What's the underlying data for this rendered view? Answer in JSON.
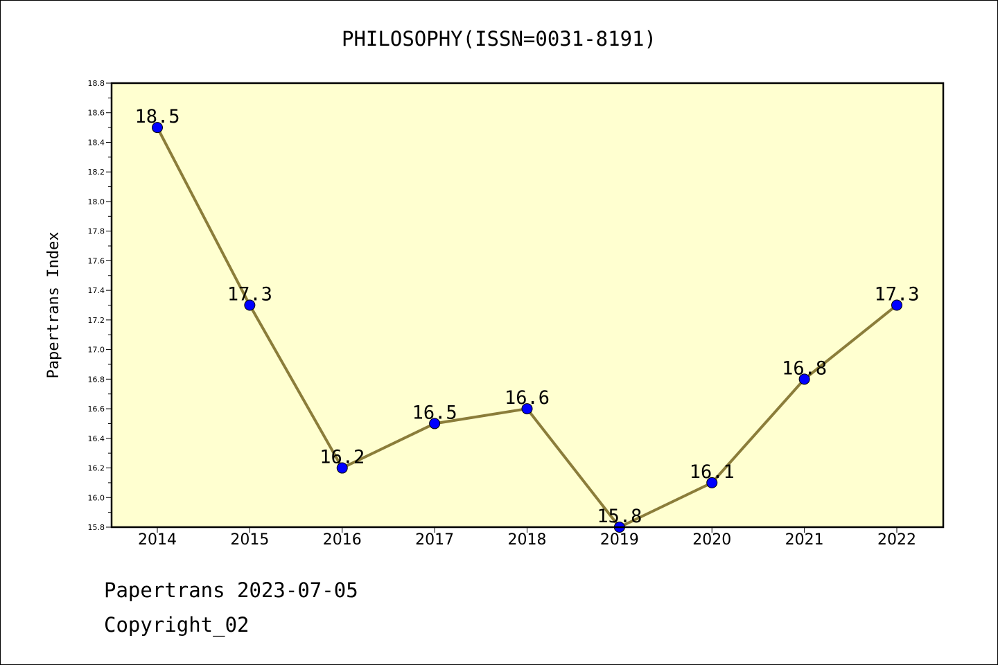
{
  "footer": {
    "line1": "Papertrans 2023-07-05",
    "line2": "Copyright_02"
  },
  "colors": {
    "plot_background": "#FFFFD0",
    "line": "#8B7D3A",
    "marker": "#0000FF"
  },
  "chart_data": {
    "type": "line",
    "title": "PHILOSOPHY(ISSN=0031-8191)",
    "xlabel": "",
    "ylabel": "Papertrans Index",
    "categories": [
      "2014",
      "2015",
      "2016",
      "2017",
      "2018",
      "2019",
      "2020",
      "2021",
      "2022"
    ],
    "values": [
      18.5,
      17.3,
      16.2,
      16.5,
      16.6,
      15.8,
      16.1,
      16.8,
      17.3
    ],
    "data_labels": [
      "18.5",
      "17.3",
      "16.2",
      "16.5",
      "16.6",
      "15.8",
      "16.1",
      "16.8",
      "17.3"
    ],
    "ylim": [
      15.8,
      18.8
    ],
    "yticks": [
      "15.8",
      "16.0",
      "16.2",
      "16.4",
      "16.6",
      "16.8",
      "17.0",
      "17.2",
      "17.4",
      "17.6",
      "17.8",
      "18.0",
      "18.2",
      "18.4",
      "18.6",
      "18.8"
    ],
    "grid": false,
    "legend": "none"
  }
}
